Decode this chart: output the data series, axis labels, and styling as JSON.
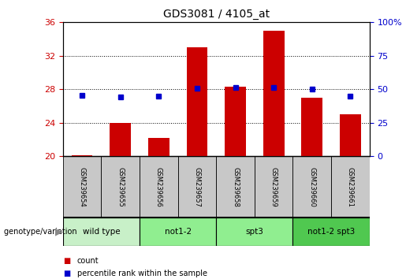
{
  "title": "GDS3081 / 4105_at",
  "samples": [
    "GSM239654",
    "GSM239655",
    "GSM239656",
    "GSM239657",
    "GSM239658",
    "GSM239659",
    "GSM239660",
    "GSM239661"
  ],
  "count_values": [
    20.1,
    24.0,
    22.2,
    33.0,
    28.3,
    35.0,
    27.0,
    25.0
  ],
  "percentile_values": [
    27.3,
    27.1,
    27.2,
    28.1,
    28.2,
    28.2,
    28.0,
    27.2
  ],
  "ylim_left": [
    20,
    36
  ],
  "ylim_right": [
    0,
    100
  ],
  "yticks_left": [
    20,
    24,
    28,
    32,
    36
  ],
  "yticks_right": [
    0,
    25,
    50,
    75,
    100
  ],
  "ytick_labels_right": [
    "0",
    "25",
    "50",
    "75",
    "100%"
  ],
  "bar_color": "#cc0000",
  "dot_color": "#0000cc",
  "groups": [
    {
      "label": "wild type",
      "start": 0,
      "end": 2,
      "color": "#c8f0c8"
    },
    {
      "label": "not1-2",
      "start": 2,
      "end": 4,
      "color": "#90ee90"
    },
    {
      "label": "spt3",
      "start": 4,
      "end": 6,
      "color": "#90ee90"
    },
    {
      "label": "not1-2 spt3",
      "start": 6,
      "end": 8,
      "color": "#50c850"
    }
  ],
  "group_row_label": "genotype/variation",
  "legend_count_label": "count",
  "legend_percentile_label": "percentile rank within the sample",
  "axis_label_color_left": "#cc0000",
  "axis_label_color_right": "#0000cc",
  "sample_box_color": "#c8c8c8",
  "background_color": "#ffffff"
}
